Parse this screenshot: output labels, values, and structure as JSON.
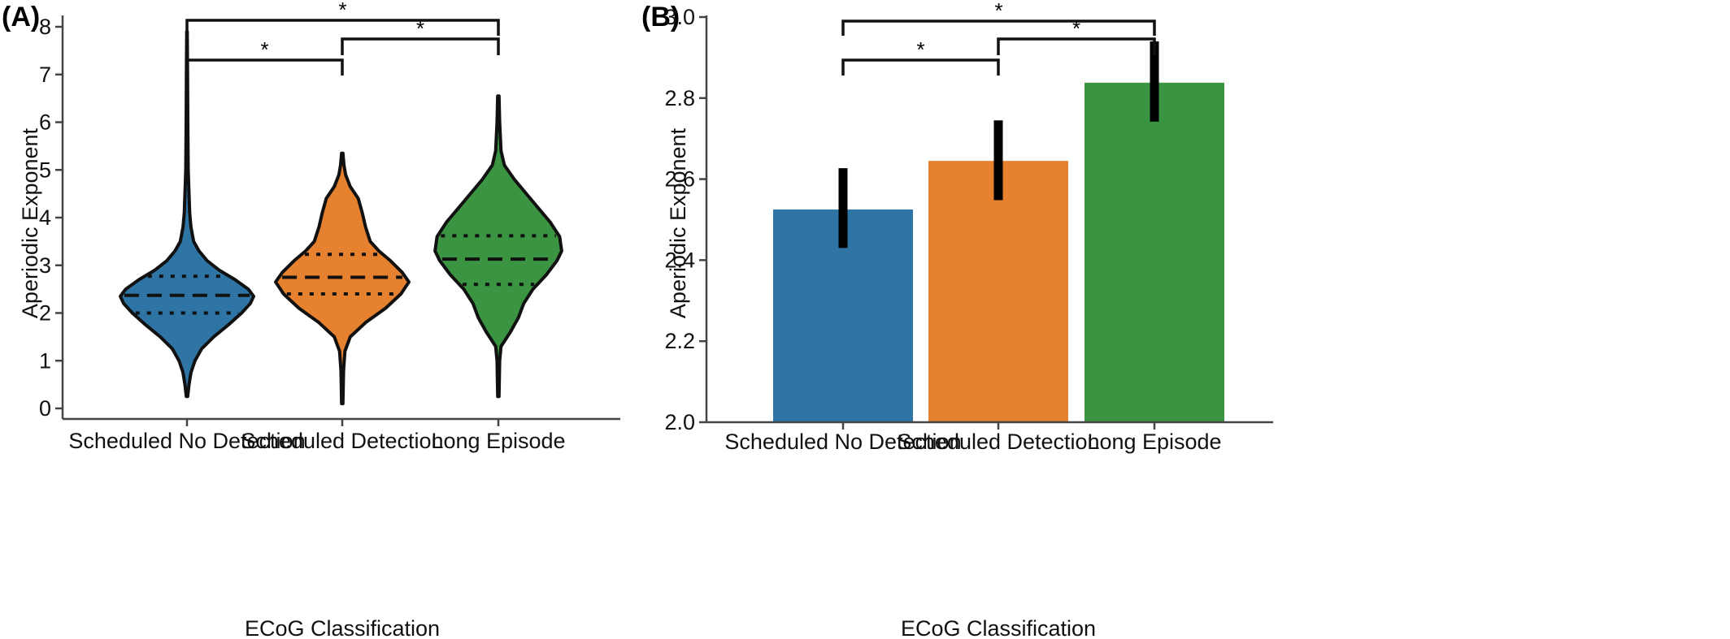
{
  "chart_data": [
    {
      "panel": "(A)",
      "type": "violin",
      "xlabel": "ECoG Classification",
      "ylabel": "Aperiodic Exponent",
      "ylim": [
        0,
        8
      ],
      "yticks": [
        "0",
        "1",
        "2",
        "3",
        "4",
        "5",
        "6",
        "7",
        "8"
      ],
      "categories": [
        "Scheduled No Detection",
        "Scheduled Detection",
        "Long Episode"
      ],
      "colors": [
        "#2e75a6",
        "#e6812f",
        "#3a9441"
      ],
      "series": [
        {
          "min": 0.25,
          "max": 7.9,
          "q1": 2.0,
          "median": 2.37,
          "q3": 2.77,
          "profile": [
            [
              0.25,
              0.01
            ],
            [
              0.5,
              0.03
            ],
            [
              0.75,
              0.06
            ],
            [
              1.0,
              0.12
            ],
            [
              1.25,
              0.22
            ],
            [
              1.5,
              0.4
            ],
            [
              1.75,
              0.62
            ],
            [
              2.0,
              0.82
            ],
            [
              2.2,
              0.95
            ],
            [
              2.35,
              1.0
            ],
            [
              2.5,
              0.92
            ],
            [
              2.7,
              0.72
            ],
            [
              2.9,
              0.48
            ],
            [
              3.1,
              0.3
            ],
            [
              3.3,
              0.18
            ],
            [
              3.5,
              0.1
            ],
            [
              3.8,
              0.06
            ],
            [
              4.1,
              0.04
            ],
            [
              4.5,
              0.03
            ],
            [
              5.0,
              0.018
            ],
            [
              6.0,
              0.012
            ],
            [
              7.0,
              0.008
            ],
            [
              7.9,
              0.004
            ]
          ]
        },
        {
          "min": 0.1,
          "max": 5.35,
          "q1": 2.4,
          "median": 2.75,
          "q3": 3.23,
          "profile": [
            [
              0.1,
              0.01
            ],
            [
              0.8,
              0.02
            ],
            [
              1.2,
              0.04
            ],
            [
              1.5,
              0.12
            ],
            [
              1.8,
              0.35
            ],
            [
              2.1,
              0.65
            ],
            [
              2.4,
              0.88
            ],
            [
              2.65,
              1.0
            ],
            [
              2.85,
              0.9
            ],
            [
              3.1,
              0.72
            ],
            [
              3.3,
              0.55
            ],
            [
              3.5,
              0.42
            ],
            [
              3.8,
              0.35
            ],
            [
              4.1,
              0.3
            ],
            [
              4.4,
              0.24
            ],
            [
              4.65,
              0.12
            ],
            [
              4.9,
              0.05
            ],
            [
              5.1,
              0.025
            ],
            [
              5.35,
              0.01
            ]
          ]
        },
        {
          "min": 0.25,
          "max": 6.55,
          "q1": 2.6,
          "median": 3.13,
          "q3": 3.62,
          "profile": [
            [
              0.25,
              0.01
            ],
            [
              1.0,
              0.02
            ],
            [
              1.3,
              0.04
            ],
            [
              1.6,
              0.18
            ],
            [
              1.9,
              0.3
            ],
            [
              2.2,
              0.38
            ],
            [
              2.5,
              0.52
            ],
            [
              2.8,
              0.72
            ],
            [
              3.1,
              0.88
            ],
            [
              3.3,
              0.95
            ],
            [
              3.6,
              0.92
            ],
            [
              3.9,
              0.78
            ],
            [
              4.2,
              0.6
            ],
            [
              4.5,
              0.42
            ],
            [
              4.8,
              0.24
            ],
            [
              5.1,
              0.09
            ],
            [
              5.4,
              0.04
            ],
            [
              6.0,
              0.02
            ],
            [
              6.55,
              0.01
            ]
          ]
        }
      ],
      "significance": [
        {
          "from": 0,
          "to": 2,
          "label": "*"
        },
        {
          "from": 1,
          "to": 2,
          "label": "*"
        },
        {
          "from": 0,
          "to": 1,
          "label": "*"
        }
      ]
    },
    {
      "panel": "(B)",
      "type": "bar",
      "xlabel": "ECoG Classification",
      "ylabel": "Aperiodic Exponent",
      "ylim": [
        2.0,
        3.0
      ],
      "yticks": [
        "2.0",
        "2.2",
        "2.4",
        "2.6",
        "2.8",
        "3.0"
      ],
      "categories": [
        "Scheduled No Detection",
        "Scheduled Detection",
        "Long Episode"
      ],
      "colors": [
        "#2e75a6",
        "#e6812f",
        "#3a9441"
      ],
      "values": [
        2.525,
        2.645,
        2.838
      ],
      "error_low": [
        2.43,
        2.548,
        2.742
      ],
      "error_high": [
        2.627,
        2.745,
        2.94
      ],
      "significance": [
        {
          "from": 0,
          "to": 2,
          "label": "*"
        },
        {
          "from": 1,
          "to": 2,
          "label": "*"
        },
        {
          "from": 0,
          "to": 1,
          "label": "*"
        }
      ]
    }
  ]
}
